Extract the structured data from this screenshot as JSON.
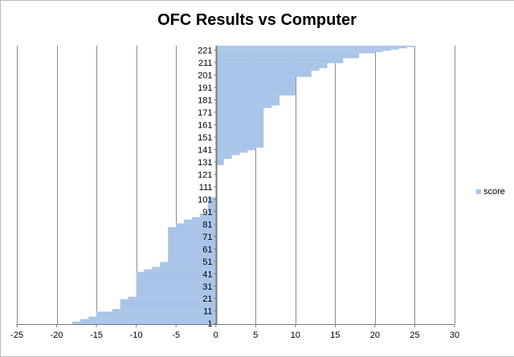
{
  "chart_data": {
    "type": "bar",
    "orientation": "horizontal",
    "title": "OFC Results vs Computer",
    "xlabel": "",
    "ylabel": "",
    "xlim": [
      -25,
      30
    ],
    "x_ticks": [
      -25,
      -20,
      -15,
      -10,
      -5,
      0,
      5,
      10,
      15,
      20,
      25,
      30
    ],
    "x_tick_labels": [
      "-25",
      "-20",
      "-15",
      "-10",
      "-5",
      "0",
      "5",
      "10",
      "15",
      "20",
      "25",
      "30"
    ],
    "y_tick_labels": [
      "1",
      "11",
      "21",
      "31",
      "41",
      "51",
      "61",
      "71",
      "81",
      "91",
      "101",
      "111",
      "121",
      "131",
      "141",
      "151",
      "161",
      "171",
      "181",
      "191",
      "201",
      "211",
      "221"
    ],
    "categories_range": [
      1,
      224
    ],
    "grid": "vertical",
    "legend": {
      "position": "right",
      "entries": [
        "score"
      ]
    },
    "series": [
      {
        "name": "score",
        "color": "#a9c4e8",
        "segments": [
          {
            "from": 1,
            "to": 2,
            "value": -18
          },
          {
            "from": 3,
            "to": 4,
            "value": -17
          },
          {
            "from": 5,
            "to": 6,
            "value": -16
          },
          {
            "from": 7,
            "to": 10,
            "value": -15
          },
          {
            "from": 11,
            "to": 12,
            "value": -13
          },
          {
            "from": 13,
            "to": 20,
            "value": -12
          },
          {
            "from": 21,
            "to": 22,
            "value": -11
          },
          {
            "from": 23,
            "to": 42,
            "value": -10
          },
          {
            "from": 43,
            "to": 44,
            "value": -9
          },
          {
            "from": 45,
            "to": 46,
            "value": -8
          },
          {
            "from": 47,
            "to": 50,
            "value": -7
          },
          {
            "from": 51,
            "to": 78,
            "value": -6
          },
          {
            "from": 79,
            "to": 81,
            "value": -5
          },
          {
            "from": 82,
            "to": 84,
            "value": -4
          },
          {
            "from": 85,
            "to": 86,
            "value": -3
          },
          {
            "from": 87,
            "to": 89,
            "value": -2
          },
          {
            "from": 90,
            "to": 102,
            "value": -1
          },
          {
            "from": 103,
            "to": 128,
            "value": 0
          },
          {
            "from": 129,
            "to": 133,
            "value": 1
          },
          {
            "from": 134,
            "to": 136,
            "value": 2
          },
          {
            "from": 137,
            "to": 138,
            "value": 3
          },
          {
            "from": 139,
            "to": 140,
            "value": 4
          },
          {
            "from": 141,
            "to": 142,
            "value": 5
          },
          {
            "from": 143,
            "to": 174,
            "value": 6
          },
          {
            "from": 175,
            "to": 176,
            "value": 7
          },
          {
            "from": 177,
            "to": 184,
            "value": 8
          },
          {
            "from": 185,
            "to": 199,
            "value": 10
          },
          {
            "from": 200,
            "to": 204,
            "value": 12
          },
          {
            "from": 205,
            "to": 206,
            "value": 13
          },
          {
            "from": 207,
            "to": 210,
            "value": 14
          },
          {
            "from": 211,
            "to": 214,
            "value": 16
          },
          {
            "from": 215,
            "to": 218,
            "value": 18
          },
          {
            "from": 219,
            "to": 219,
            "value": 20
          },
          {
            "from": 220,
            "to": 220,
            "value": 21
          },
          {
            "from": 221,
            "to": 221,
            "value": 22
          },
          {
            "from": 222,
            "to": 222,
            "value": 23
          },
          {
            "from": 223,
            "to": 223,
            "value": 24
          },
          {
            "from": 224,
            "to": 224,
            "value": 25
          }
        ]
      }
    ]
  }
}
